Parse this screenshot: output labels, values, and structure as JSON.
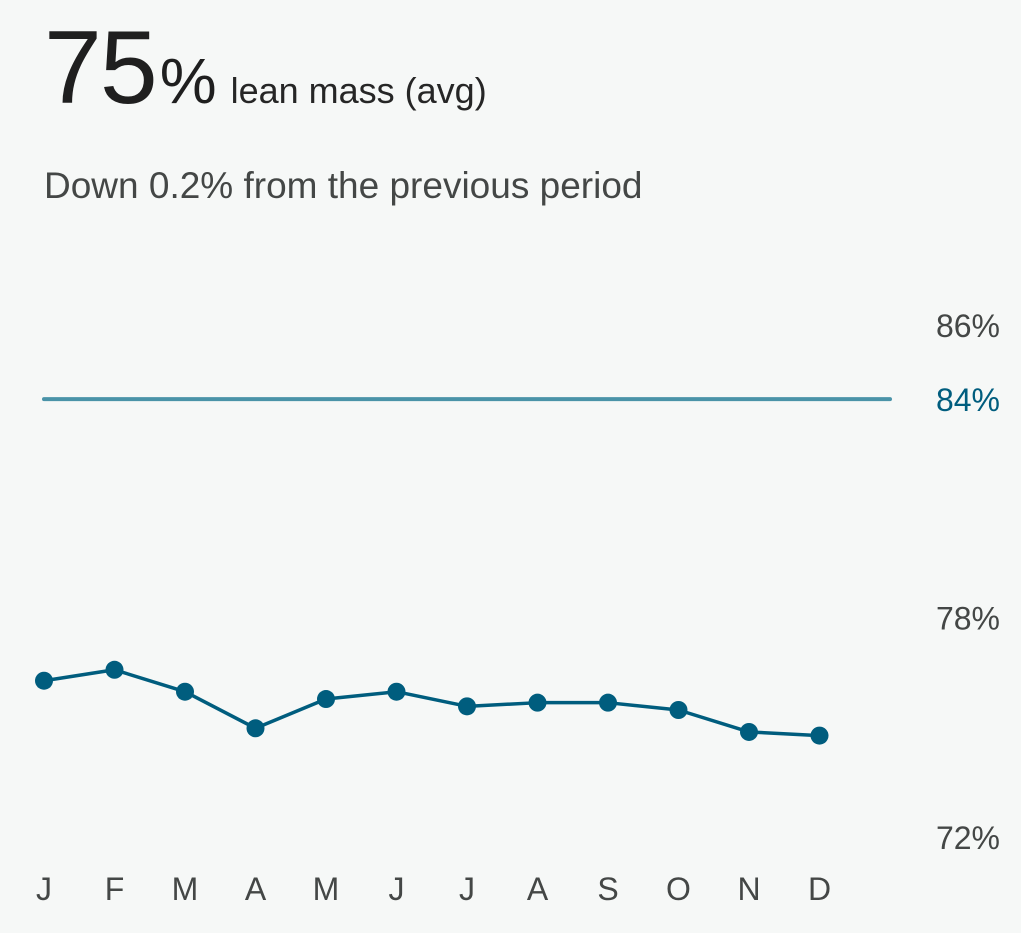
{
  "header": {
    "value": "75",
    "unit": "%",
    "label": "lean mass (avg)",
    "subtitle": "Down 0.2% from the previous period"
  },
  "colors": {
    "series": "#005d7e",
    "goal_line": "#4a93a8",
    "goal_label": "#005d7e",
    "axis_text": "#444746",
    "background": "#f6f8f7"
  },
  "chart_data": {
    "type": "line",
    "categories": [
      "J",
      "F",
      "M",
      "A",
      "M",
      "J",
      "J",
      "A",
      "S",
      "O",
      "N",
      "D"
    ],
    "values": [
      76.3,
      76.6,
      76.0,
      75.0,
      75.8,
      76.0,
      75.6,
      75.7,
      75.7,
      75.5,
      74.9,
      74.8
    ],
    "ylim": [
      72,
      86
    ],
    "y_ticks": [
      {
        "value": 86,
        "label": "86%"
      },
      {
        "value": 78,
        "label": "78%"
      },
      {
        "value": 72,
        "label": "72%"
      }
    ],
    "goal": {
      "value": 84,
      "label": "84%"
    },
    "grid": false
  }
}
